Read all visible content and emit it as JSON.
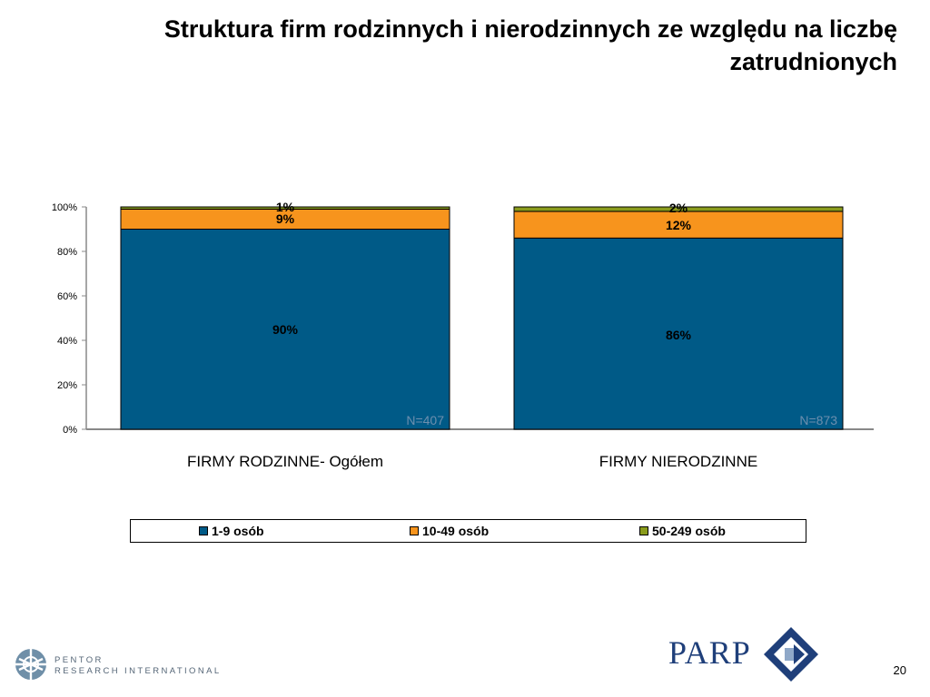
{
  "title": "Struktura firm rodzinnych i nierodzinnych ze względu na liczbę zatrudnionych",
  "chart_data": {
    "type": "bar",
    "stacked": true,
    "categories": [
      "FIRMY RODZINNE- Ogółem",
      "FIRMY NIERODZINNE"
    ],
    "series": [
      {
        "name": "1-9 osób",
        "values": [
          90,
          86
        ],
        "labels": [
          "90%",
          "86%"
        ],
        "color": "#005a87"
      },
      {
        "name": "10-49 osób",
        "values": [
          9,
          12
        ],
        "labels": [
          "9%",
          "12%"
        ],
        "color": "#f7941d"
      },
      {
        "name": "50-249 osób",
        "values": [
          1,
          2
        ],
        "labels": [
          "1%",
          "2%"
        ],
        "color": "#8a9c1c"
      }
    ],
    "sample_labels": [
      "N=407",
      "N=873"
    ],
    "yticks": [
      "0%",
      "20%",
      "40%",
      "60%",
      "80%",
      "100%"
    ],
    "ylim": [
      0,
      100
    ],
    "grid": false,
    "legend_position": "bottom"
  },
  "footer": {
    "pentor_line1": "PENTOR",
    "pentor_line2": "RESEARCH INTERNATIONAL",
    "parp_text": "PARP",
    "page_number": "20"
  }
}
